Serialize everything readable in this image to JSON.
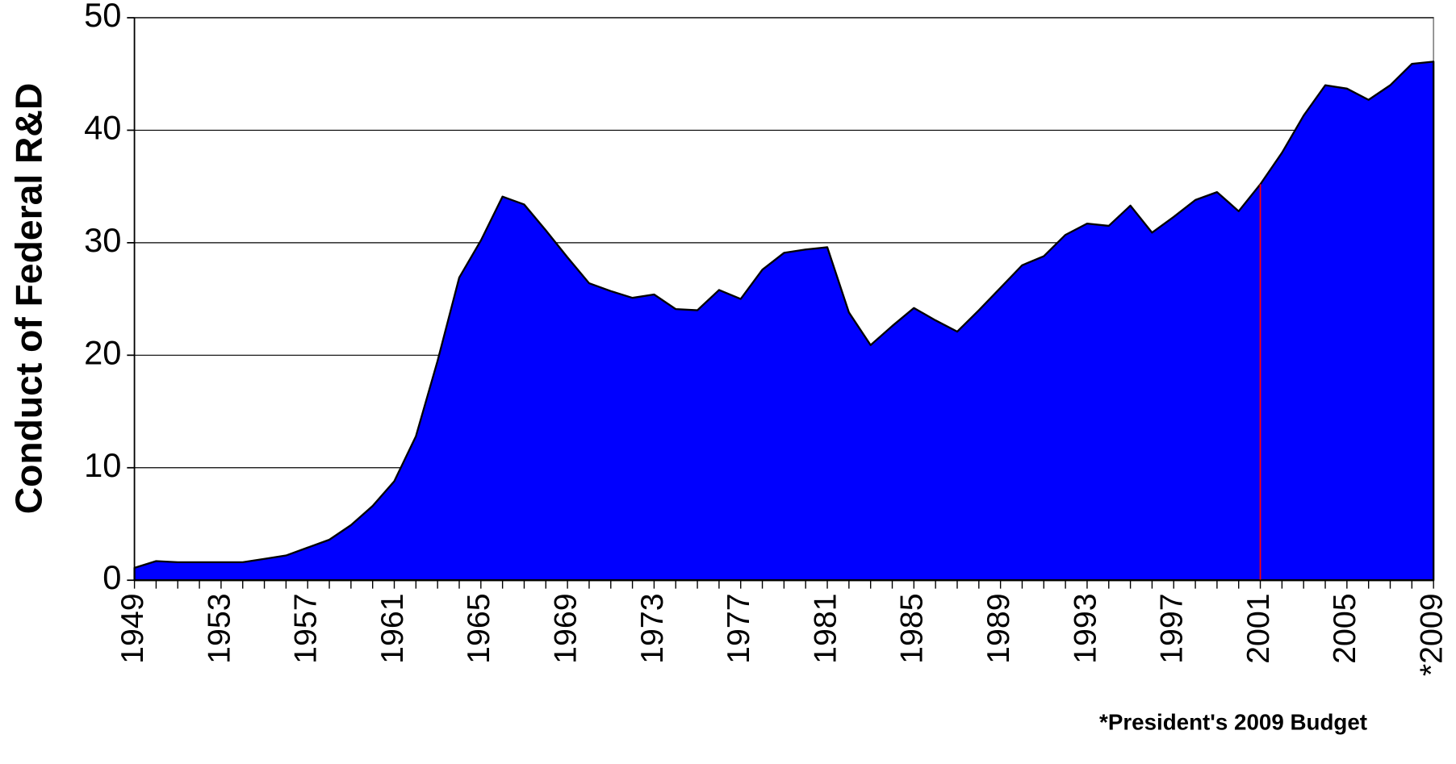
{
  "chart_data": {
    "type": "area",
    "ylabel": "Conduct of Federal R&D",
    "annotation": "*President's 2009 Budget",
    "categories": [
      "1949",
      null,
      null,
      null,
      "1953",
      null,
      null,
      null,
      "1957",
      null,
      null,
      null,
      "1961",
      null,
      null,
      null,
      "1965",
      null,
      null,
      null,
      "1969",
      null,
      null,
      null,
      "1973",
      null,
      null,
      null,
      "1977",
      null,
      null,
      null,
      "1981",
      null,
      null,
      null,
      "1985",
      null,
      null,
      null,
      "1989",
      null,
      null,
      null,
      "1993",
      null,
      null,
      null,
      "1997",
      null,
      null,
      null,
      "2001",
      null,
      null,
      null,
      "2005",
      null,
      null,
      null,
      "*2009"
    ],
    "values": [
      1.1,
      1.7,
      1.6,
      1.6,
      1.6,
      1.6,
      1.9,
      2.2,
      2.9,
      3.6,
      4.9,
      6.6,
      8.8,
      12.8,
      19.5,
      26.9,
      30.2,
      34.1,
      33.4,
      31.1,
      28.7,
      26.4,
      25.7,
      25.1,
      25.4,
      24.1,
      24.0,
      25.8,
      25.0,
      27.6,
      29.1,
      29.4,
      29.6,
      23.8,
      20.9,
      22.6,
      24.2,
      23.1,
      22.1,
      24.0,
      26.0,
      28.0,
      28.8,
      30.7,
      31.7,
      31.5,
      33.3,
      30.9,
      32.3,
      33.8,
      34.5,
      32.8,
      35.2,
      38.0,
      41.3,
      44.0,
      43.7,
      42.7,
      44.0,
      45.9,
      46.1
    ],
    "color": "#0000ff",
    "vline_category": "2001",
    "vline_color": "#ff0000",
    "ylim": [
      0,
      50
    ],
    "yticks": [
      0,
      10,
      20,
      30,
      40,
      50
    ],
    "grid": true
  }
}
